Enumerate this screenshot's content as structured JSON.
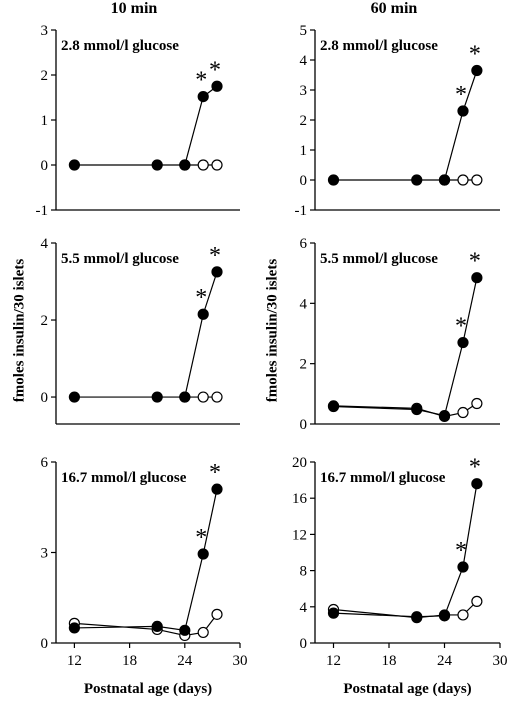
{
  "columns": [
    "10 min",
    "60 min"
  ],
  "ylabel": "fmoles insulin/30 islets",
  "xlabel": "Postnatal age (days)",
  "chart_data": [
    {
      "type": "line",
      "col": 0,
      "row": 0,
      "title": "2.8 mmol/l  glucose",
      "ylim": [
        -1,
        3
      ],
      "yticks": [
        -1,
        0,
        1,
        2,
        3
      ],
      "xlim": [
        10,
        30
      ],
      "xticks": [],
      "series": [
        {
          "marker": "filled",
          "x": [
            12,
            21,
            24,
            26,
            27.5
          ],
          "y": [
            0,
            0,
            0,
            1.52,
            1.75
          ]
        },
        {
          "marker": "open",
          "x": [
            24,
            26,
            27.5
          ],
          "y": [
            0,
            0,
            0
          ]
        }
      ],
      "significant": [
        [
          26,
          1.52
        ],
        [
          27.5,
          1.75
        ]
      ]
    },
    {
      "type": "line",
      "col": 1,
      "row": 0,
      "title": "2.8 mmol/l  glucose",
      "ylim": [
        -1,
        5
      ],
      "yticks": [
        -1,
        0,
        1,
        2,
        3,
        4,
        5
      ],
      "xlim": [
        10,
        30
      ],
      "xticks": [],
      "series": [
        {
          "marker": "filled",
          "x": [
            12,
            21,
            24,
            26,
            27.5
          ],
          "y": [
            0,
            0,
            0,
            2.3,
            3.65
          ]
        },
        {
          "marker": "open",
          "x": [
            24,
            26,
            27.5
          ],
          "y": [
            0,
            0,
            0
          ]
        }
      ],
      "significant": [
        [
          26,
          2.3
        ],
        [
          27.5,
          3.65
        ]
      ]
    },
    {
      "type": "line",
      "col": 0,
      "row": 1,
      "title": "5.5 mmol/l  glucose",
      "ylim": [
        -0.7,
        4
      ],
      "yticks": [
        0,
        2,
        4
      ],
      "xlim": [
        10,
        30
      ],
      "xticks": [],
      "series": [
        {
          "marker": "filled",
          "x": [
            12,
            21,
            24,
            26,
            27.5
          ],
          "y": [
            0,
            0,
            0,
            2.15,
            3.25
          ]
        },
        {
          "marker": "open",
          "x": [
            24,
            26,
            27.5
          ],
          "y": [
            0,
            0,
            0
          ]
        }
      ],
      "significant": [
        [
          26,
          2.15
        ],
        [
          27.5,
          3.25
        ]
      ]
    },
    {
      "type": "line",
      "col": 1,
      "row": 1,
      "title": "5.5 mmol/l  glucose",
      "ylim": [
        0,
        6
      ],
      "yticks": [
        0,
        2,
        4,
        6
      ],
      "xlim": [
        10,
        30
      ],
      "xticks": [],
      "series": [
        {
          "marker": "filled",
          "x": [
            12,
            21,
            24,
            26,
            27.5
          ],
          "y": [
            0.58,
            0.48,
            0.28,
            2.7,
            4.85
          ]
        },
        {
          "marker": "open",
          "x": [
            12,
            21,
            24,
            26,
            27.5
          ],
          "y": [
            0.6,
            0.52,
            0.25,
            0.38,
            0.68
          ]
        }
      ],
      "significant": [
        [
          26,
          2.7
        ],
        [
          27.5,
          4.85
        ]
      ]
    },
    {
      "type": "line",
      "col": 0,
      "row": 2,
      "title": "16.7 mmol/l  glucose",
      "ylim": [
        0,
        6
      ],
      "yticks": [
        0,
        3,
        6
      ],
      "xlim": [
        10,
        30
      ],
      "xticks": [
        12,
        18,
        24,
        30
      ],
      "series": [
        {
          "marker": "filled",
          "x": [
            12,
            21,
            24,
            26,
            27.5
          ],
          "y": [
            0.5,
            0.55,
            0.42,
            2.95,
            5.1
          ]
        },
        {
          "marker": "open",
          "x": [
            12,
            21,
            24,
            26,
            27.5
          ],
          "y": [
            0.65,
            0.45,
            0.25,
            0.35,
            0.95
          ]
        }
      ],
      "significant": [
        [
          26,
          2.95
        ],
        [
          27.5,
          5.1
        ]
      ]
    },
    {
      "type": "line",
      "col": 1,
      "row": 2,
      "title": "16.7 mmol/l  glucose",
      "ylim": [
        0,
        20
      ],
      "yticks": [
        0,
        4,
        8,
        12,
        16,
        20
      ],
      "xlim": [
        10,
        30
      ],
      "xticks": [
        12,
        18,
        24,
        30
      ],
      "series": [
        {
          "marker": "filled",
          "x": [
            12,
            21,
            24,
            26,
            27.5
          ],
          "y": [
            3.3,
            2.9,
            3.0,
            8.4,
            17.6
          ]
        },
        {
          "marker": "open",
          "x": [
            12,
            21,
            24,
            26,
            27.5
          ],
          "y": [
            3.7,
            2.8,
            3.1,
            3.1,
            4.6
          ]
        }
      ],
      "significant": [
        [
          26,
          8.4
        ],
        [
          27.5,
          17.6
        ]
      ]
    }
  ]
}
